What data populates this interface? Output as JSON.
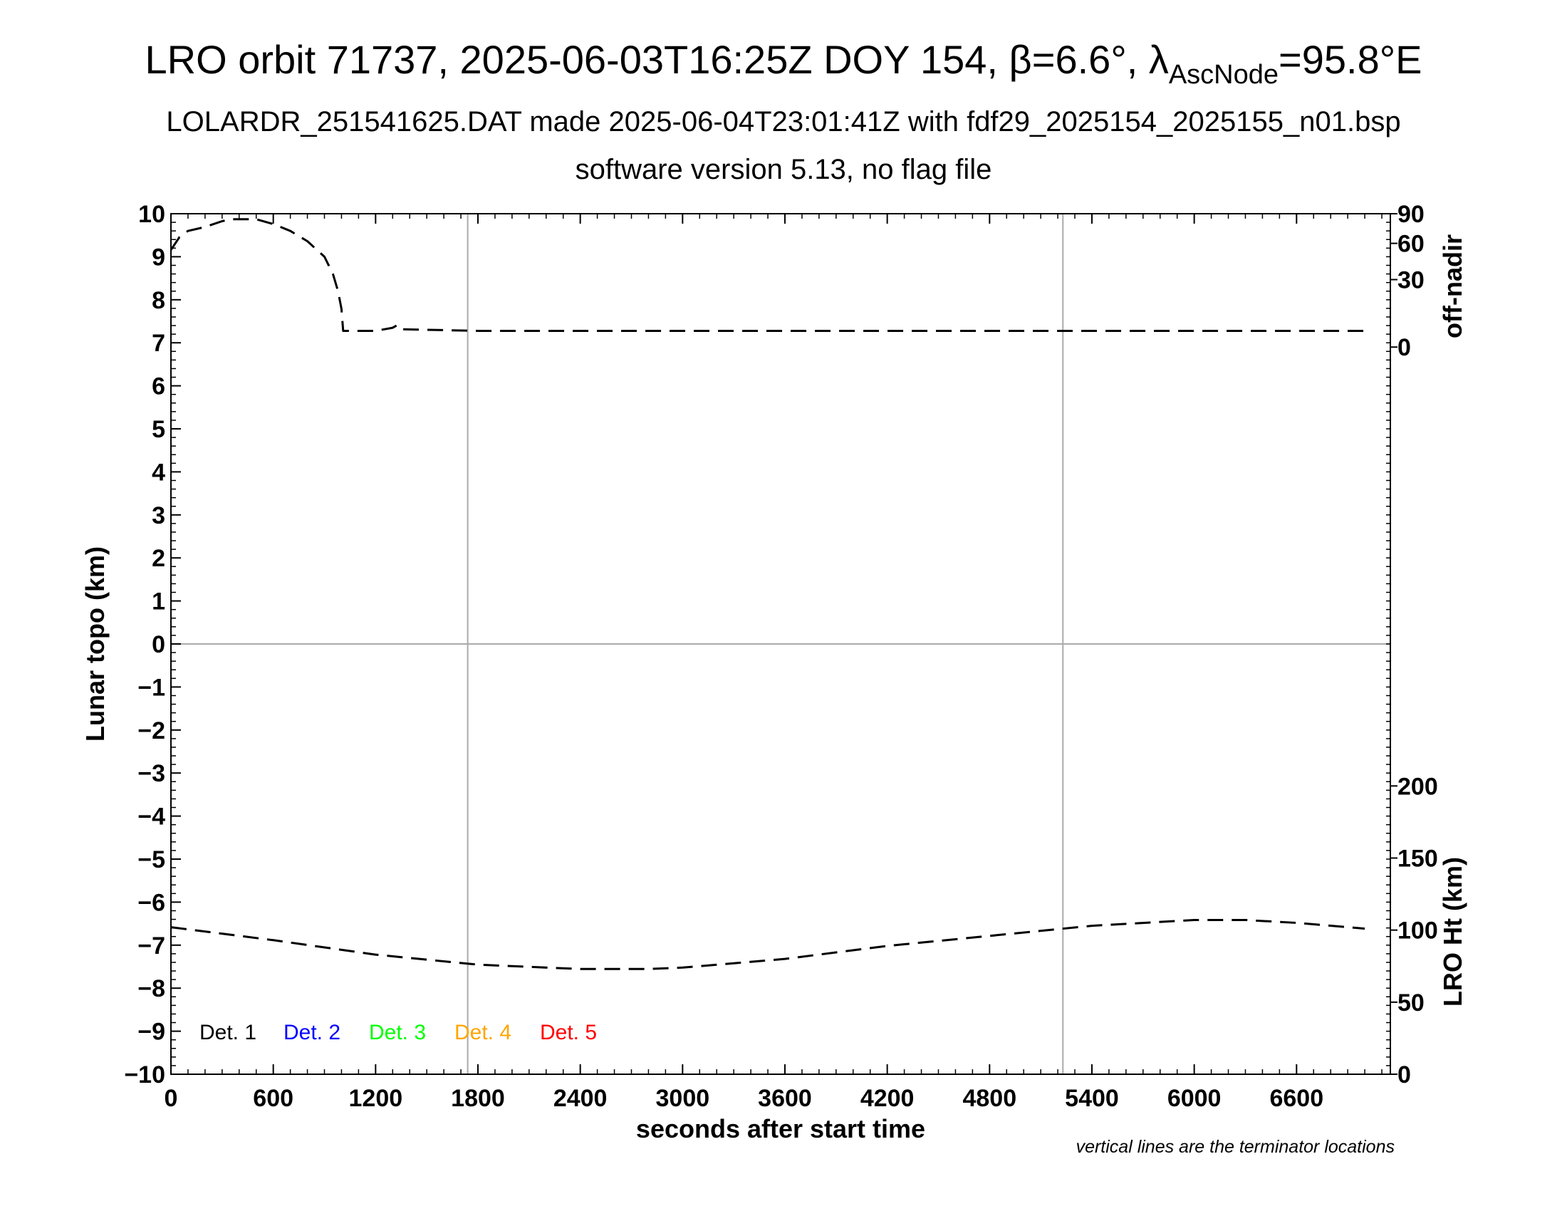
{
  "title": {
    "main_prefix": "LRO orbit 71737, 2025-06-03T16:25Z DOY 154, β=6.6°, λ",
    "main_sub": "AscNode",
    "main_suffix": "=95.8°E",
    "line2": "LOLARDR_251541625.DAT made 2025-06-04T23:01:41Z with fdf29_2025154_2025155_n01.bsp",
    "line3": "software version 5.13, no flag file"
  },
  "note": "vertical lines are the terminator locations",
  "colors": {
    "det1": "#000000",
    "det2": "#0000ff",
    "det3": "#00ff00",
    "det4": "#ffa500",
    "det5": "#ff0000",
    "grid": "#aaaaaa"
  },
  "chart_data": {
    "type": "line",
    "xlabel": "seconds after start time",
    "ylabel": "Lunar topo (km)",
    "y2label_top": "off-nadir",
    "y2label_bottom": "LRO Ht (km)",
    "xlim": [
      0,
      7150
    ],
    "ylim": [
      -10,
      10
    ],
    "grid": true,
    "x_ticks": [
      0,
      600,
      1200,
      1800,
      2400,
      3000,
      3600,
      4200,
      4800,
      5400,
      6000,
      6600
    ],
    "y_ticks": [
      "10",
      "9",
      "8",
      "7",
      "6",
      "5",
      "4",
      "3",
      "2",
      "1",
      "0",
      "−1",
      "−2",
      "−3",
      "−4",
      "−5",
      "−6",
      "−7",
      "−8",
      "−9",
      "−10"
    ],
    "off_nadir_ticks": [
      "90",
      "60",
      "30",
      "0"
    ],
    "lro_ht_ticks": [
      "200",
      "150",
      "100",
      "50",
      "0"
    ],
    "terminator_lines": [
      1740,
      5230
    ],
    "legend": [
      "Det. 1",
      "Det. 2",
      "Det. 3",
      "Det. 4",
      "Det. 5"
    ],
    "series": [
      {
        "name": "off-nadir",
        "axis": "off-nadir",
        "style": "dashed",
        "x": [
          0,
          50,
          100,
          200,
          300,
          350,
          400,
          500,
          600,
          700,
          800,
          900,
          950,
          980,
          1000,
          1010,
          1200,
          1300,
          1330,
          1360,
          1800,
          2400,
          3000,
          3600,
          4200,
          4800,
          5400,
          6000,
          6600,
          7000
        ],
        "y": [
          54,
          66,
          72,
          76,
          82,
          84,
          84,
          84,
          79,
          72,
          62,
          48,
          34,
          22,
          12,
          3,
          3,
          4,
          5,
          3.5,
          3,
          3,
          3,
          3,
          3,
          3,
          3,
          3,
          3,
          3
        ]
      },
      {
        "name": "LRO Ht (km)",
        "axis": "lro-ht",
        "style": "dashed",
        "x": [
          0,
          600,
          1200,
          1800,
          2400,
          2800,
          3000,
          3600,
          4200,
          4800,
          5400,
          6000,
          6300,
          6600,
          7000
        ],
        "y": [
          102,
          93,
          83,
          76,
          73,
          73,
          74,
          80,
          89,
          96,
          103,
          107,
          107,
          105,
          101
        ]
      }
    ]
  }
}
